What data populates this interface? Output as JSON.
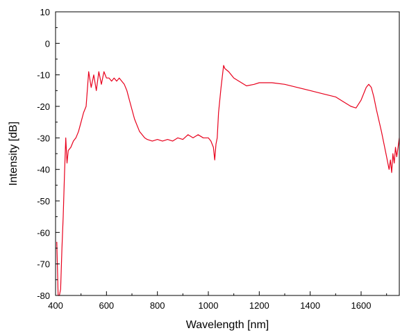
{
  "chart_data": {
    "type": "line",
    "xlabel": "Wavelength [nm]",
    "ylabel": "Intensity [dB]",
    "xlim": [
      400,
      1750
    ],
    "ylim": [
      -80,
      10
    ],
    "xticks": [
      400,
      600,
      800,
      1000,
      1200,
      1400,
      1600
    ],
    "yticks": [
      10,
      0,
      -10,
      -20,
      -30,
      -40,
      -50,
      -60,
      -70,
      -80
    ],
    "grid": false,
    "series_color": "#e8001c",
    "series": [
      {
        "x": [
          405,
          410,
          415,
          420,
          425,
          430,
          435,
          440,
          445,
          450,
          460,
          470,
          480,
          490,
          500,
          510,
          520,
          530,
          540,
          550,
          560,
          570,
          580,
          590,
          600,
          610,
          620,
          630,
          640,
          650,
          660,
          670,
          680,
          690,
          700,
          710,
          720,
          730,
          740,
          750,
          760,
          780,
          800,
          820,
          840,
          860,
          880,
          900,
          920,
          940,
          960,
          980,
          1000,
          1010,
          1020,
          1025,
          1030,
          1035,
          1040,
          1050,
          1060,
          1065,
          1080,
          1100,
          1120,
          1150,
          1180,
          1200,
          1250,
          1300,
          1350,
          1400,
          1450,
          1500,
          1530,
          1560,
          1580,
          1600,
          1620,
          1630,
          1640,
          1650,
          1660,
          1680,
          1700,
          1710,
          1715,
          1720,
          1725,
          1730,
          1735,
          1740,
          1745,
          1750
        ],
        "y": [
          -63,
          -80,
          -80,
          -78,
          -65,
          -55,
          -42,
          -30,
          -38,
          -34,
          -33,
          -31,
          -30,
          -28,
          -25,
          -22,
          -20,
          -9,
          -14,
          -10,
          -15,
          -9,
          -13,
          -9,
          -11,
          -11,
          -12,
          -11,
          -12,
          -11,
          -12,
          -13,
          -15,
          -18,
          -21,
          -24,
          -26,
          -28,
          -29,
          -30,
          -30.5,
          -31,
          -30.5,
          -31,
          -30.5,
          -31,
          -30,
          -30.5,
          -29,
          -30,
          -29,
          -30,
          -30,
          -31,
          -33,
          -37,
          -32,
          -30,
          -22,
          -14,
          -7,
          -8,
          -9,
          -11,
          -12,
          -13.5,
          -13,
          -12.5,
          -12.5,
          -13,
          -14,
          -15,
          -16,
          -17,
          -18.5,
          -20,
          -20.5,
          -18,
          -14,
          -13,
          -14,
          -17,
          -21,
          -28,
          -36,
          -40,
          -37,
          -41,
          -35,
          -38,
          -33,
          -36,
          -33,
          -30
        ]
      }
    ]
  }
}
